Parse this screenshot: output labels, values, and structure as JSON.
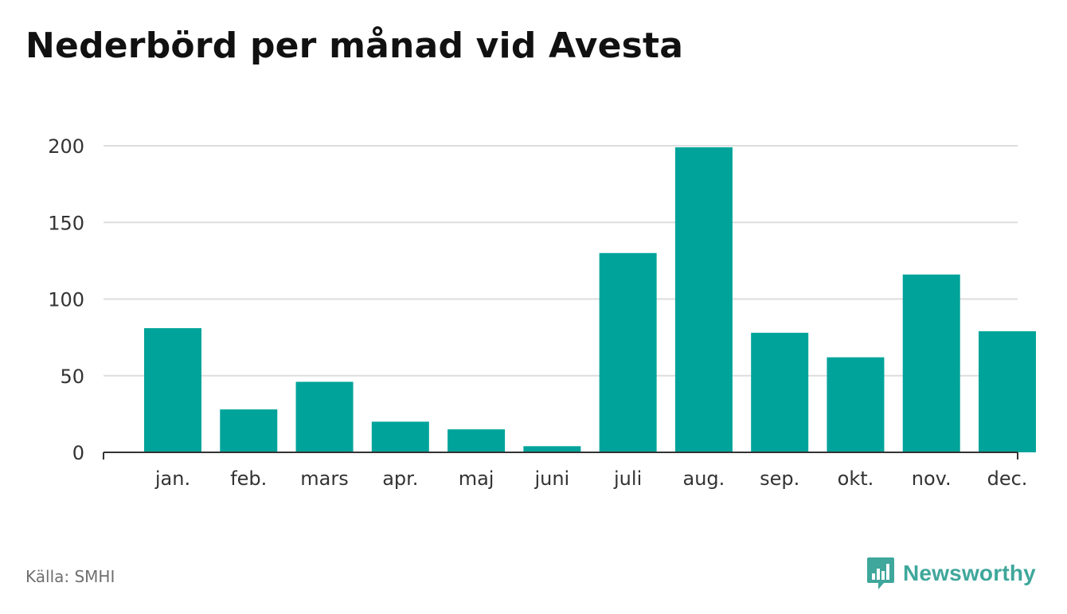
{
  "title": "Nederbörd per månad vid Avesta",
  "source": "Källa: SMHI",
  "brand": {
    "name": "Newsworthy",
    "icon": "newsworthy-logo-icon"
  },
  "colors": {
    "bar": "#00a39a",
    "grid": "#dddddd",
    "axis": "#333333",
    "brand": "#3fa79b"
  },
  "chart_data": {
    "type": "bar",
    "categories": [
      "jan.",
      "feb.",
      "mars",
      "apr.",
      "maj",
      "juni",
      "juli",
      "aug.",
      "sep.",
      "okt.",
      "nov.",
      "dec."
    ],
    "values": [
      81,
      28,
      46,
      20,
      15,
      4,
      130,
      199,
      78,
      62,
      116,
      79
    ],
    "ylim": [
      0,
      200
    ],
    "yticks": [
      0,
      50,
      100,
      150,
      200
    ],
    "grid": true,
    "xlabel": "",
    "ylabel": ""
  }
}
